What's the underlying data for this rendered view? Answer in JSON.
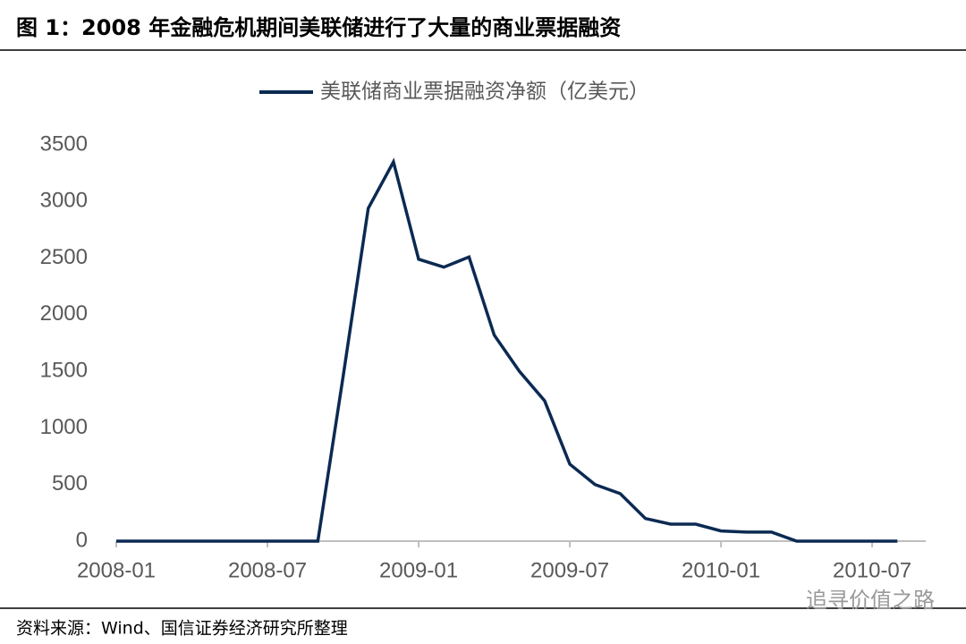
{
  "header": {
    "title": "图 1：2008 年金融危机期间美联储进行了大量的商业票据融资"
  },
  "chart_data": {
    "type": "line",
    "x": [
      "2008-01",
      "2008-02",
      "2008-03",
      "2008-04",
      "2008-05",
      "2008-06",
      "2008-07",
      "2008-08",
      "2008-09",
      "2008-10",
      "2008-11",
      "2008-12",
      "2009-01",
      "2009-02",
      "2009-03",
      "2009-04",
      "2009-05",
      "2009-06",
      "2009-07",
      "2009-08",
      "2009-09",
      "2009-10",
      "2009-11",
      "2009-12",
      "2010-01",
      "2010-02",
      "2010-03",
      "2010-04",
      "2010-05",
      "2010-06",
      "2010-07",
      "2010-08"
    ],
    "series": [
      {
        "name": "美联储商业票据融资净额（亿美元）",
        "color": "#0b2a52",
        "values": [
          0,
          0,
          0,
          0,
          0,
          0,
          0,
          0,
          0,
          1450,
          2940,
          3350,
          2490,
          2420,
          2510,
          1820,
          1500,
          1240,
          680,
          500,
          420,
          200,
          150,
          150,
          90,
          80,
          80,
          0,
          0,
          0,
          0,
          0
        ]
      }
    ],
    "xticks": [
      "2008-01",
      "2008-07",
      "2009-01",
      "2009-07",
      "2010-01",
      "2010-07"
    ],
    "ylim": [
      0,
      3500
    ],
    "yticks": [
      0,
      500,
      1000,
      1500,
      2000,
      2500,
      3000,
      3500
    ],
    "legend": "top"
  },
  "footer": {
    "source": "资料来源：Wind、国信证券经济研究所整理",
    "watermark": "追寻价值之路"
  }
}
